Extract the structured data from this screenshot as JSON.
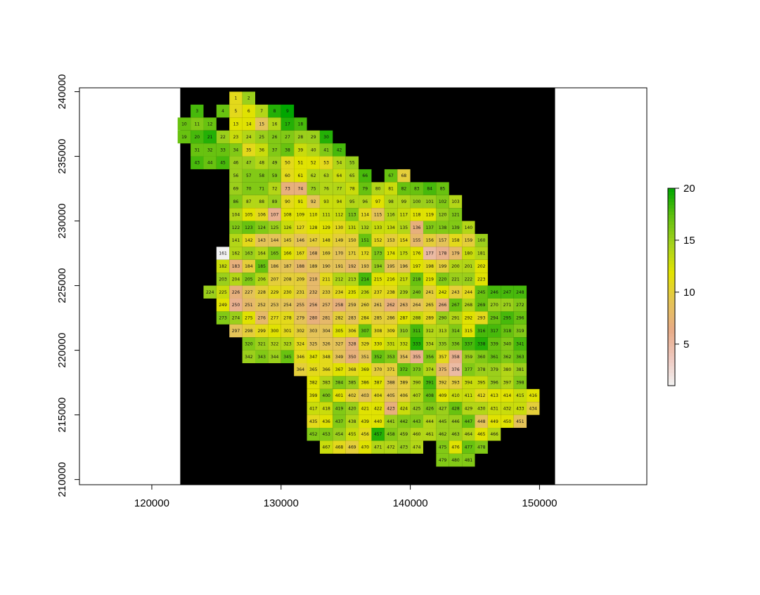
{
  "chart_data": {
    "type": "heatmap",
    "title": "",
    "xlabel": "",
    "ylabel": "",
    "xlim": [
      114400,
      158300
    ],
    "ylim": [
      209600,
      240300
    ],
    "x_ticks": [
      120000,
      130000,
      140000,
      150000
    ],
    "x_tick_labels": [
      "120000",
      "130000",
      "140000",
      "150000"
    ],
    "y_ticks": [
      210000,
      215000,
      220000,
      225000,
      230000,
      235000,
      240000
    ],
    "y_tick_labels": [
      "210000",
      "215000",
      "220000",
      "225000",
      "230000",
      "235000",
      "240000"
    ],
    "raster_extent": {
      "xmin": 122200,
      "xmax": 151200,
      "ymin": 209600,
      "ymax": 240300
    },
    "background_color": "#000000",
    "cell_size": 1000,
    "grid_origin": {
      "x": 126500,
      "y": 239500
    },
    "rows": [
      {
        "col_start": 0,
        "ids": [
          1,
          2
        ],
        "values": [
          11,
          15
        ]
      },
      {
        "col_start": -3,
        "ids": [
          3,
          null,
          4,
          5,
          6,
          7,
          8,
          9
        ],
        "values": [
          18,
          null,
          17,
          11,
          12,
          14,
          19,
          20
        ]
      },
      {
        "col_start": -4,
        "ids": [
          10,
          11,
          12,
          null,
          13,
          14,
          15,
          16,
          17,
          18
        ],
        "values": [
          17,
          16,
          17,
          null,
          12,
          12,
          9,
          14,
          19,
          18
        ]
      },
      {
        "col_start": -4,
        "ids": [
          19,
          20,
          21,
          22,
          23,
          24,
          25,
          26,
          27,
          28,
          29,
          30
        ],
        "values": [
          17,
          18,
          19,
          15,
          13,
          14,
          15,
          16,
          16,
          15,
          15,
          19
        ]
      },
      {
        "col_start": -3,
        "ids": [
          31,
          32,
          33,
          34,
          35,
          36,
          37,
          38,
          39,
          40,
          41,
          42
        ],
        "values": [
          17,
          17,
          17,
          16,
          11,
          13,
          16,
          17,
          13,
          14,
          16,
          18
        ]
      },
      {
        "col_start": -3,
        "ids": [
          43,
          44,
          45,
          46,
          47,
          48,
          49,
          50,
          51,
          52,
          53,
          54,
          55
        ],
        "values": [
          18,
          17,
          18,
          15,
          15,
          14,
          15,
          11,
          12,
          12,
          11,
          14,
          15
        ]
      },
      {
        "col_start": 0,
        "ids": [
          56,
          57,
          58,
          59,
          60,
          61,
          62,
          63,
          64,
          65,
          66,
          null,
          67,
          68
        ],
        "values": [
          15,
          16,
          16,
          16,
          11,
          12,
          14,
          14,
          13,
          14,
          18,
          null,
          17,
          10
        ]
      },
      {
        "col_start": 0,
        "ids": [
          69,
          70,
          71,
          72,
          73,
          74,
          75,
          76,
          77,
          78,
          79,
          80,
          81,
          82,
          83,
          84,
          85
        ],
        "values": [
          15,
          16,
          16,
          14,
          7,
          7,
          15,
          14,
          14,
          13,
          17,
          14,
          13,
          17,
          17,
          18,
          17
        ]
      },
      {
        "col_start": 0,
        "ids": [
          86,
          87,
          88,
          89,
          90,
          91,
          92,
          93,
          94,
          95,
          96,
          97,
          98,
          99,
          100,
          101,
          102,
          103
        ],
        "values": [
          16,
          14,
          14,
          15,
          11,
          12,
          9,
          13,
          13,
          14,
          14,
          12,
          14,
          14,
          15,
          15,
          16,
          14
        ]
      },
      {
        "col_start": 0,
        "ids": [
          104,
          105,
          106,
          107,
          108,
          109,
          110,
          111,
          112,
          113,
          114,
          115,
          116,
          117,
          118,
          119,
          120,
          121
        ],
        "values": [
          14,
          12,
          11,
          6,
          12,
          12,
          12,
          13,
          13,
          16,
          11,
          9,
          14,
          13,
          12,
          12,
          15,
          16
        ]
      },
      {
        "col_start": 0,
        "ids": [
          122,
          123,
          124,
          125,
          126,
          127,
          128,
          129,
          130,
          131,
          132,
          133,
          134,
          135,
          136,
          137,
          138,
          139,
          140
        ],
        "values": [
          16,
          17,
          16,
          15,
          13,
          11,
          12,
          12,
          11,
          13,
          14,
          13,
          13,
          14,
          7,
          16,
          16,
          16,
          14
        ]
      },
      {
        "col_start": 0,
        "ids": [
          141,
          142,
          143,
          144,
          145,
          146,
          147,
          148,
          149,
          150,
          151,
          152,
          153,
          154,
          155,
          156,
          157,
          158,
          159,
          160
        ],
        "values": [
          14,
          11,
          9,
          9,
          10,
          9,
          10,
          11,
          10,
          10,
          17,
          11,
          10,
          11,
          8,
          10,
          9,
          11,
          10,
          15
        ]
      },
      {
        "col_start": -1,
        "ids": [
          161,
          162,
          163,
          164,
          165,
          166,
          167,
          168,
          169,
          170,
          171,
          172,
          173,
          174,
          175,
          176,
          177,
          178,
          179,
          180,
          181
        ],
        "values": [
          1,
          14,
          15,
          14,
          16,
          12,
          11,
          8,
          10,
          9,
          10,
          11,
          16,
          12,
          13,
          12,
          5,
          6,
          8,
          13,
          14
        ]
      },
      {
        "col_start": -1,
        "ids": [
          182,
          183,
          184,
          185,
          186,
          187,
          188,
          189,
          190,
          191,
          192,
          193,
          194,
          195,
          196,
          197,
          198,
          199,
          200,
          201,
          202
        ],
        "values": [
          13,
          7,
          10,
          17,
          9,
          9,
          8,
          9,
          9,
          9,
          8,
          9,
          15,
          9,
          9,
          12,
          11,
          10,
          14,
          14,
          12
        ]
      },
      {
        "col_start": -1,
        "ids": [
          203,
          204,
          205,
          206,
          207,
          208,
          209,
          210,
          211,
          212,
          213,
          214,
          215,
          216,
          217,
          218,
          219,
          220,
          221,
          222,
          223
        ],
        "values": [
          15,
          14,
          16,
          14,
          10,
          10,
          10,
          8,
          11,
          14,
          14,
          18,
          12,
          12,
          13,
          17,
          12,
          16,
          15,
          15,
          12
        ]
      },
      {
        "col_start": -2,
        "ids": [
          224,
          225,
          226,
          227,
          228,
          229,
          230,
          231,
          232,
          233,
          234,
          235,
          236,
          237,
          238,
          239,
          240,
          241,
          242,
          243,
          244,
          245,
          246,
          247,
          248
        ],
        "values": [
          15,
          13,
          7,
          9,
          10,
          11,
          11,
          10,
          8,
          10,
          11,
          12,
          13,
          11,
          11,
          14,
          16,
          10,
          12,
          10,
          11,
          17,
          18,
          18,
          18
        ]
      },
      {
        "col_start": -1,
        "ids": [
          249,
          250,
          251,
          252,
          253,
          254,
          255,
          256,
          257,
          258,
          259,
          260,
          261,
          262,
          263,
          264,
          265,
          266,
          267,
          268,
          269,
          270,
          271,
          272
        ],
        "values": [
          12,
          6,
          8,
          9,
          9,
          9,
          8,
          7,
          8,
          7,
          9,
          10,
          9,
          7,
          8,
          9,
          10,
          7,
          17,
          14,
          17,
          15,
          15,
          16
        ]
      },
      {
        "col_start": -1,
        "ids": [
          273,
          274,
          275,
          276,
          277,
          278,
          279,
          280,
          281,
          282,
          283,
          284,
          285,
          286,
          287,
          288,
          289,
          290,
          291,
          292,
          293,
          294,
          295,
          296
        ],
        "values": [
          16,
          15,
          12,
          8,
          11,
          11,
          9,
          7,
          8,
          10,
          9,
          11,
          10,
          10,
          12,
          13,
          11,
          15,
          14,
          12,
          11,
          17,
          18,
          17
        ]
      },
      {
        "col_start": 0,
        "ids": [
          297,
          298,
          299,
          300,
          301,
          302,
          303,
          304,
          305,
          306,
          307,
          308,
          309,
          310,
          311,
          312,
          313,
          314,
          315,
          316,
          317,
          318,
          319
        ],
        "values": [
          9,
          10,
          11,
          12,
          11,
          10,
          9,
          9,
          12,
          11,
          17,
          11,
          11,
          15,
          18,
          14,
          14,
          16,
          12,
          18,
          18,
          17,
          16
        ]
      },
      {
        "col_start": 1,
        "ids": [
          320,
          321,
          322,
          323,
          324,
          325,
          326,
          327,
          328,
          329,
          330,
          331,
          332,
          333,
          334,
          335,
          336,
          337,
          338,
          339,
          340,
          341
        ],
        "values": [
          16,
          15,
          14,
          14,
          11,
          9,
          9,
          9,
          7,
          11,
          12,
          13,
          13,
          19,
          14,
          15,
          16,
          18,
          19,
          17,
          16,
          18
        ]
      },
      {
        "col_start": 1,
        "ids": [
          342,
          343,
          344,
          345,
          346,
          347,
          348,
          349,
          350,
          351,
          352,
          353,
          354,
          355,
          356,
          357,
          358,
          359,
          360,
          361,
          362,
          363
        ],
        "values": [
          15,
          16,
          15,
          17,
          11,
          12,
          11,
          9,
          7,
          9,
          17,
          16,
          9,
          6,
          16,
          11,
          6,
          15,
          16,
          17,
          16,
          17
        ]
      },
      {
        "col_start": 5,
        "ids": [
          364,
          365,
          366,
          367,
          368,
          369,
          370,
          371,
          372,
          373,
          374,
          375,
          376,
          377,
          378,
          379,
          380,
          381
        ],
        "values": [
          10,
          11,
          11,
          12,
          11,
          12,
          10,
          10,
          17,
          16,
          14,
          8,
          5,
          16,
          15,
          15,
          14,
          15
        ]
      },
      {
        "col_start": 6,
        "ids": [
          382,
          383,
          384,
          385,
          386,
          387,
          388,
          389,
          390,
          391,
          392,
          393,
          394,
          395,
          396,
          397,
          398
        ],
        "values": [
          12,
          14,
          16,
          15,
          12,
          12,
          9,
          10,
          14,
          18,
          10,
          10,
          13,
          13,
          15,
          14,
          16
        ]
      },
      {
        "col_start": 6,
        "ids": [
          399,
          400,
          401,
          402,
          403,
          404,
          405,
          406,
          407,
          408,
          409,
          410,
          411,
          412,
          413,
          414,
          415,
          416
        ],
        "values": [
          12,
          16,
          12,
          10,
          9,
          11,
          9,
          10,
          14,
          17,
          12,
          13,
          13,
          11,
          12,
          12,
          13,
          12
        ]
      },
      {
        "col_start": 6,
        "ids": [
          417,
          418,
          419,
          420,
          421,
          422,
          423,
          424,
          425,
          426,
          427,
          428,
          429,
          430,
          431,
          432,
          433,
          434
        ],
        "values": [
          13,
          13,
          16,
          15,
          12,
          12,
          7,
          13,
          15,
          16,
          15,
          17,
          14,
          14,
          13,
          13,
          13,
          10
        ]
      },
      {
        "col_start": 6,
        "ids": [
          435,
          436,
          437,
          438,
          439,
          440,
          441,
          442,
          443,
          444,
          445,
          446,
          447,
          448,
          449,
          450,
          451
        ],
        "values": [
          11,
          12,
          16,
          14,
          12,
          12,
          15,
          16,
          16,
          14,
          15,
          15,
          17,
          9,
          12,
          12,
          9
        ]
      },
      {
        "col_start": 6,
        "ids": [
          452,
          453,
          454,
          455,
          456,
          457,
          458,
          459,
          460,
          461,
          462,
          463,
          464,
          465,
          466
        ],
        "values": [
          16,
          16,
          15,
          13,
          11,
          19,
          16,
          15,
          14,
          14,
          15,
          15,
          14,
          12,
          14
        ]
      },
      {
        "col_start": 7,
        "ids": [
          467,
          468,
          469,
          470,
          471,
          472,
          473,
          474,
          null,
          475,
          476,
          477,
          478
        ],
        "values": [
          13,
          11,
          10,
          12,
          14,
          14,
          15,
          14,
          null,
          16,
          12,
          17,
          16
        ]
      },
      {
        "col_start": 16,
        "ids": [
          479,
          480,
          481
        ],
        "values": [
          16,
          16,
          16
        ]
      }
    ],
    "legend": {
      "min": 1,
      "max": 20,
      "ticks": [
        5,
        10,
        15,
        20
      ],
      "tick_labels": [
        "5",
        "10",
        "15",
        "20"
      ],
      "colors": [
        "#f2f2f2",
        "#eec8be",
        "#e8ab86",
        "#e4c455",
        "#e3e300",
        "#a6d21d",
        "#61c00f",
        "#00a600"
      ]
    }
  }
}
